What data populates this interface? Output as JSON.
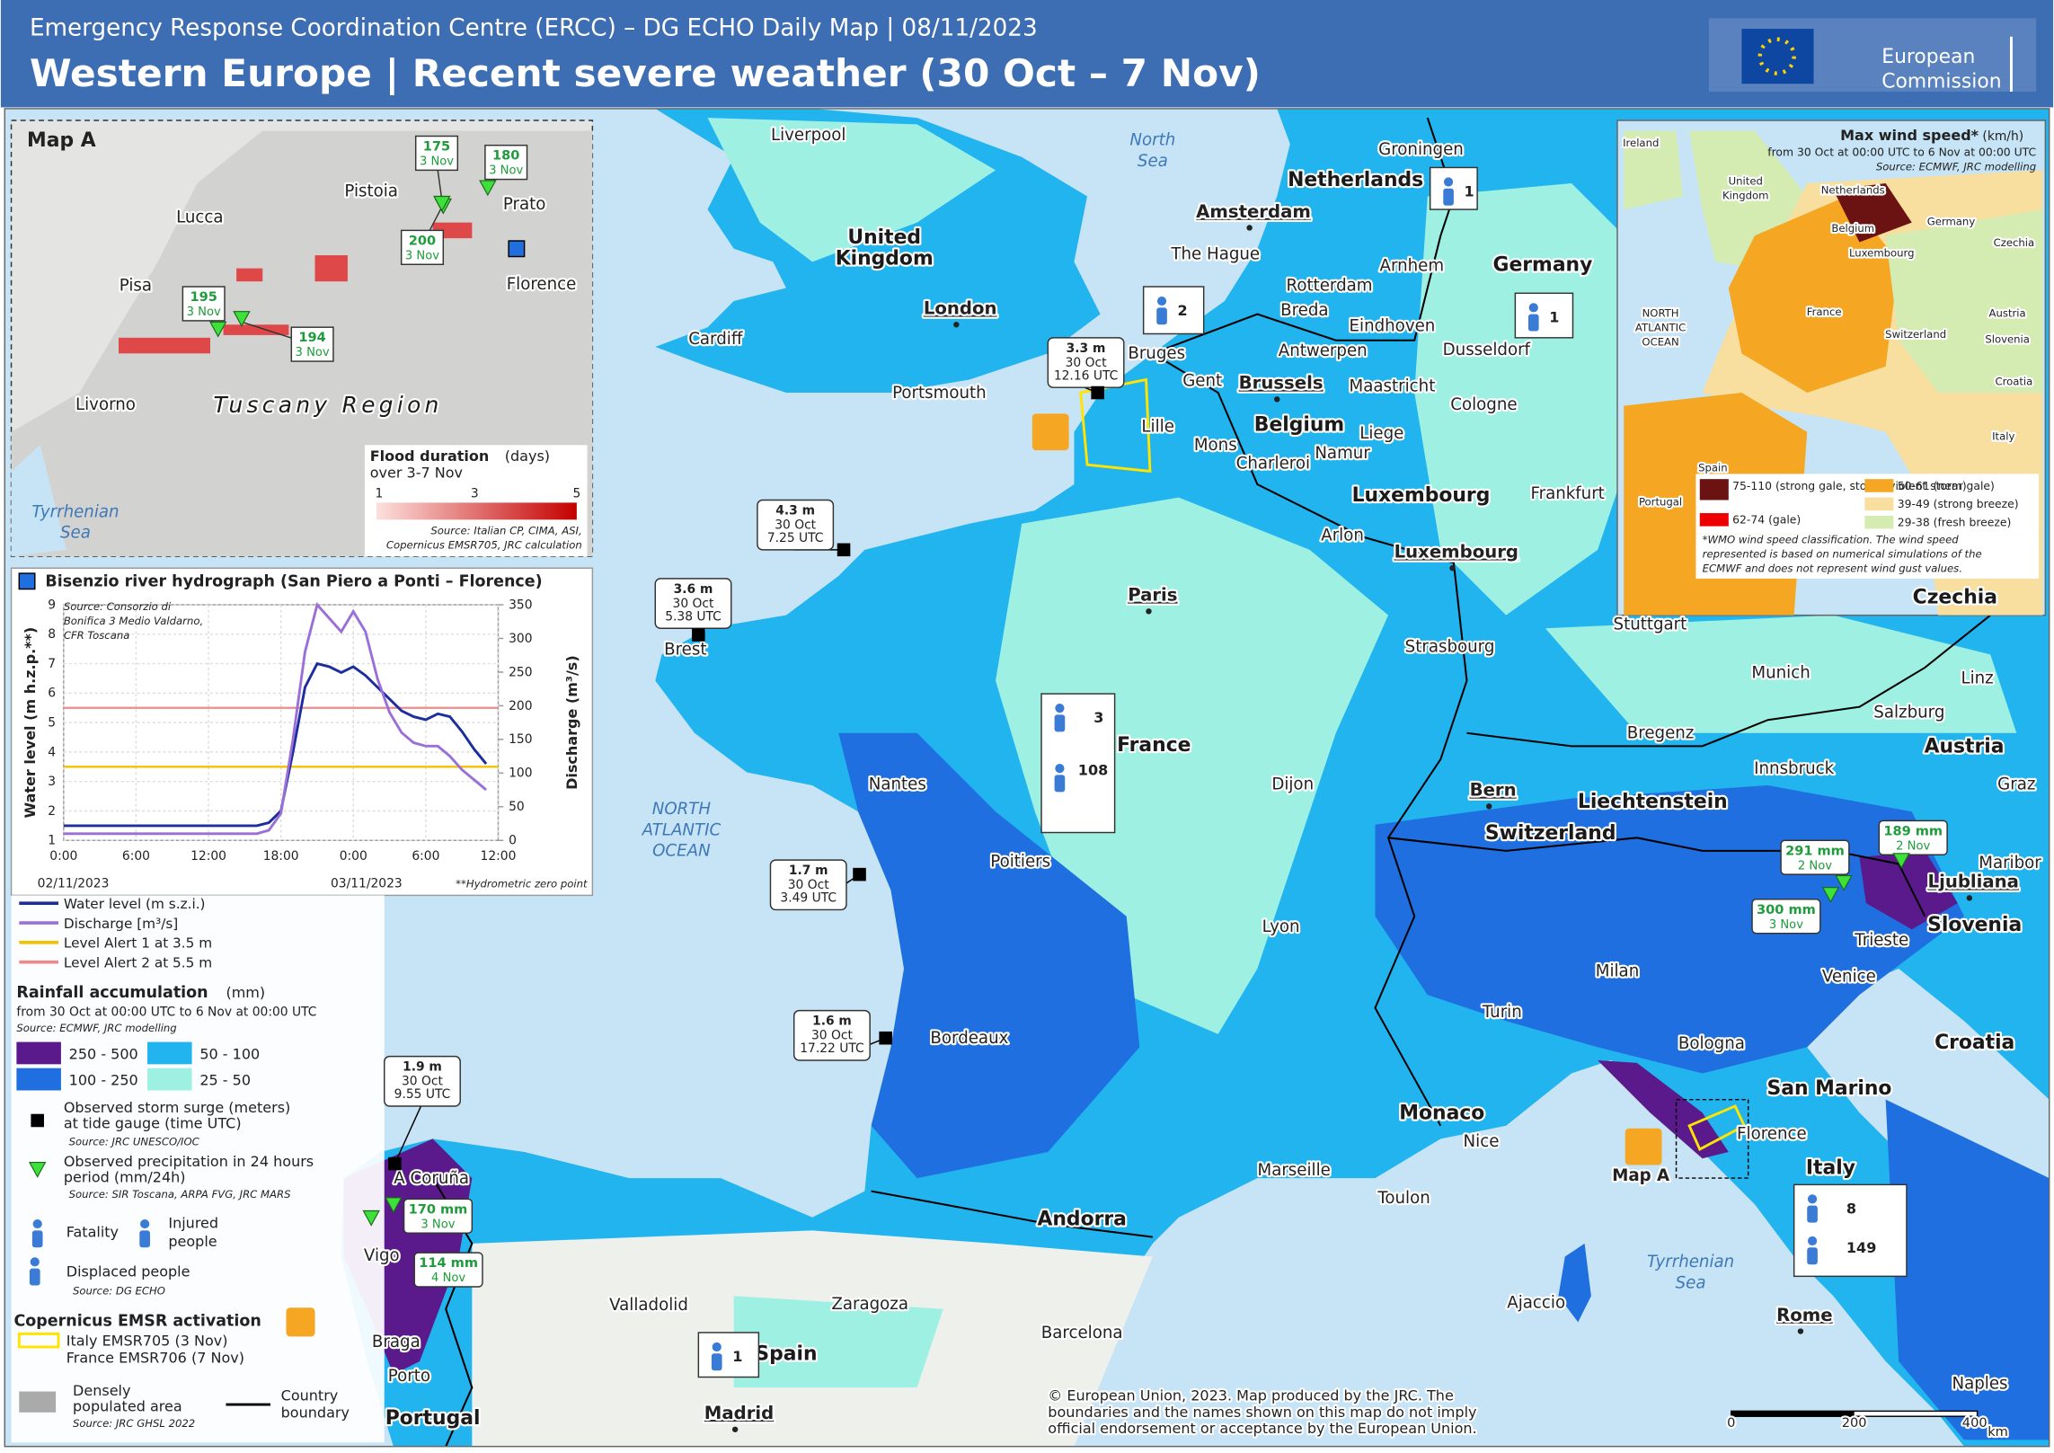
{
  "header": {
    "subtitle": "Emergency Response Coordination Centre (ERCC) – DG ECHO Daily Map | 08/11/2023",
    "title": "Western Europe | Recent severe weather (30 Oct – 7 Nov)",
    "logo": [
      "European",
      "Commission"
    ]
  },
  "map": {
    "places": [
      "Liverpool",
      [
        "North",
        "Sea"
      ],
      "Groningen",
      "Netherlands",
      "Amsterdam",
      [
        "United",
        "Kingdom"
      ],
      "The Hague",
      "Rotterdam",
      "Arnhem",
      "Germany",
      "Breda",
      "Eindhoven",
      "London",
      "Cardiff",
      "Antwerpen",
      "Dusseldorf",
      "Bruges",
      "Gent",
      "Brussels",
      "Maastricht",
      "Portsmouth",
      "Cologne",
      "Lille",
      "Belgium",
      "Liege",
      "Mons",
      "Namur",
      "Charleroi",
      "Luxembourg",
      "Frankfurt",
      "Arlon",
      "Luxembourg",
      "Paris",
      "Czechia",
      "Stuttgart",
      "Strasbourg",
      "Brest",
      "Munich",
      "Linz",
      "Salzburg",
      "France",
      "Bregenz",
      "Austria",
      "Nantes",
      "Dijon",
      "Innsbruck",
      "Graz",
      "Bern",
      "Liechtenstein",
      "Switzerland",
      [
        "NORTH",
        "ATLANTIC",
        "OCEAN"
      ],
      "Poitiers",
      "Maribor",
      "Ljubliana",
      "Lyon",
      "Slovenia",
      "Trieste",
      "Milan",
      "Venice",
      "Turin",
      "Bordeaux",
      "Bologna",
      "Croatia",
      "San Marino",
      "Monaco",
      "Florence",
      "Nice",
      "Italy",
      "Marseille",
      "Map A",
      "A Coruña",
      "Toulon",
      "Andorra",
      "Vigo",
      [
        "Tyrrhenian",
        "Sea"
      ],
      "Ajaccio",
      "Valladolid",
      "Zaragoza",
      "Rome",
      "Barcelona",
      "Braga",
      "Spain",
      "Porto",
      "Naples",
      "Madrid",
      "Portugal"
    ],
    "impact_boxes": [
      {
        "fatalities": "1"
      },
      {
        "fatalities": "2"
      },
      {
        "fatalities": "1"
      },
      {
        "fatalities": "3",
        "injured": "108"
      },
      {
        "fatalities": "8",
        "displaced": "149"
      },
      {
        "fatalities": "1"
      }
    ],
    "storm_surges": [
      {
        "height": "3.3 m",
        "date": "30 Oct",
        "time": "12.16 UTC"
      },
      {
        "height": "4.3 m",
        "date": "30 Oct",
        "time": "7.25 UTC"
      },
      {
        "height": "3.6 m",
        "date": "30 Oct",
        "time": "5.38 UTC"
      },
      {
        "height": "1.7 m",
        "date": "30 Oct",
        "time": "3.49 UTC"
      },
      {
        "height": "1.6 m",
        "date": "30 Oct",
        "time": "17.22 UTC"
      },
      {
        "height": "1.9 m",
        "date": "30 Oct",
        "time": "9.55 UTC"
      }
    ],
    "precipitation": [
      {
        "amount": "291 mm",
        "date": "2 Nov"
      },
      {
        "amount": "189 mm",
        "date": "2 Nov"
      },
      {
        "amount": "300 mm",
        "date": "3 Nov"
      },
      {
        "amount": "170 mm",
        "date": "3 Nov"
      },
      {
        "amount": "114 mm",
        "date": "4 Nov"
      }
    ]
  },
  "map_a": {
    "title": "Map A",
    "places": [
      "Pistoia",
      "Prato",
      "Lucca",
      "Florence",
      "Pisa",
      "Livorno",
      "Tuscany Region",
      [
        "Tyrrhenian",
        "Sea"
      ]
    ],
    "precipitation": [
      {
        "amount": "175",
        "date": "3 Nov"
      },
      {
        "amount": "180",
        "date": "3 Nov"
      },
      {
        "amount": "200",
        "date": "3 Nov"
      },
      {
        "amount": "195",
        "date": "3 Nov"
      },
      {
        "amount": "194",
        "date": "3 Nov"
      }
    ],
    "flood_legend": {
      "title": "Flood duration",
      "unit": "(days)",
      "period": "over 3-7 Nov",
      "ticks": [
        "1",
        "3",
        "5"
      ],
      "source": [
        "Source: Italian CP, CIMA, ASI,",
        "Copernicus EMSR705, JRC calculation"
      ]
    }
  },
  "wind_inset": {
    "title": "Max wind speed*",
    "unit": "(km/h)",
    "period": "from 30 Oct at 00:00 UTC to 6 Nov at 00:00 UTC",
    "source": "Source: ECMWF, JRC modelling",
    "places": [
      "Ireland",
      [
        "United",
        "Kingdom"
      ],
      "Netherlands",
      "Belgium",
      "Luxembourg",
      "Germany",
      "Czechia",
      "France",
      [
        "NORTH",
        "ATLANTIC",
        "OCEAN"
      ],
      "Switzerland",
      "Austria",
      "Slovenia",
      "Croatia",
      "Italy",
      "Spain",
      "Portugal"
    ],
    "classes": [
      {
        "label": "75-110 (strong gale, storm, violent storm)",
        "color": "#6b1212"
      },
      {
        "label": "62-74 (gale)",
        "color": "#ee0000"
      },
      {
        "label": "50-61 (near gale)",
        "color": "#f5a623"
      },
      {
        "label": "39-49 (strong breeze)",
        "color": "#f8dfa0"
      },
      {
        "label": "29-38 (fresh breeze)",
        "color": "#d4ecb2"
      }
    ],
    "note": [
      "*WMO wind speed classification. The wind speed",
      "represented is based on numerical simulations of the",
      "ECMWF and does not represent wind gust values."
    ]
  },
  "chart_data": {
    "type": "line",
    "title": "Bisenzio river hydrograph (San Piero a Ponti – Florence)",
    "source": [
      "Source: Consorzio di",
      "Bonifica 3 Medio Valdarno,",
      "CFR Toscana"
    ],
    "y_label": "Water level (m h.z.p.**)",
    "y2_label": "Discharge (m³/s)",
    "x_dates": [
      "02/11/2023",
      "03/11/2023"
    ],
    "note": "**Hydrometric zero point",
    "x": [
      0,
      4,
      8,
      12,
      16,
      17,
      18,
      19,
      20,
      21,
      22,
      23,
      24,
      25,
      26,
      27,
      28,
      29,
      30,
      31,
      32,
      33,
      34,
      35
    ],
    "xlim": [
      0,
      36
    ],
    "xticks": [
      {
        "value": 0,
        "label": "0:00"
      },
      {
        "value": 6,
        "label": "6:00"
      },
      {
        "value": 12,
        "label": "12:00"
      },
      {
        "value": 18,
        "label": "18:00"
      },
      {
        "value": 24,
        "label": "0:00"
      },
      {
        "value": 30,
        "label": "6:00"
      },
      {
        "value": 36,
        "label": "12:00"
      }
    ],
    "ylim": [
      1,
      9
    ],
    "yticks": [
      1,
      2,
      3,
      4,
      5,
      6,
      7,
      8,
      9
    ],
    "y2lim": [
      0,
      350
    ],
    "y2ticks": [
      0,
      50,
      100,
      150,
      200,
      250,
      300,
      350
    ],
    "grid": true,
    "series": [
      {
        "name": "Water level (m s.z.i.)",
        "color": "#1c2d9e",
        "values": [
          1.5,
          1.5,
          1.5,
          1.5,
          1.5,
          1.6,
          2.0,
          4.0,
          6.2,
          7.0,
          6.9,
          6.7,
          6.9,
          6.6,
          6.2,
          5.8,
          5.4,
          5.2,
          5.1,
          5.3,
          5.2,
          4.7,
          4.1,
          3.6
        ]
      },
      {
        "name": "Discharge [m³/s]",
        "color": "#9b6fd8",
        "axis": "y2",
        "values": [
          10,
          10,
          10,
          10,
          10,
          15,
          40,
          150,
          280,
          350,
          330,
          310,
          340,
          310,
          240,
          190,
          160,
          145,
          140,
          140,
          125,
          105,
          90,
          75
        ]
      }
    ],
    "thresholds": [
      {
        "name": "Level Alert 1 at 3.5 m",
        "value": 3.5,
        "color": "#f2c200"
      },
      {
        "name": "Level Alert 2 at 5.5 m",
        "value": 5.5,
        "color": "#f08a8a"
      }
    ]
  },
  "legend": {
    "rain_title": "Rainfall accumulation",
    "rain_unit": "(mm)",
    "rain_period": "from 30 Oct at 00:00 UTC to 6 Nov at 00:00 UTC",
    "rain_source": "Source: ECMWF, JRC modelling",
    "rain_classes": [
      {
        "label": "250 - 500",
        "color": "#5b1a8c"
      },
      {
        "label": "100 - 250",
        "color": "#1f6fe0"
      },
      {
        "label": "50 - 100",
        "color": "#22b4ee"
      },
      {
        "label": "25 - 50",
        "color": "#9ef0e2"
      }
    ],
    "surge": [
      "Observed storm surge (meters)",
      "at tide gauge (time UTC)"
    ],
    "surge_source": "Source: JRC UNESCO/IOC",
    "precip": [
      "Observed precipitation in 24 hours",
      "period (mm/24h)"
    ],
    "precip_source": "Source: SIR Toscana, ARPA FVG, JRC MARS",
    "fatality": "Fatality",
    "injured": [
      "Injured",
      "people"
    ],
    "displaced": "Displaced people",
    "impact_source": "Source: DG ECHO",
    "emsr_title": "Copernicus EMSR activation",
    "emsr": [
      "Italy EMSR705 (3 Nov)",
      "France EMSR706 (7 Nov)"
    ],
    "populated": [
      "Densely",
      "populated area"
    ],
    "populated_source": "Source: JRC GHSL 2022",
    "boundary": [
      "Country",
      "boundary"
    ]
  },
  "footer": {
    "copyright": [
      "© European Union, 2023. Map produced by the JRC. The",
      "boundaries and the names shown on this map do not imply",
      "official endorsement or acceptance by the European Union."
    ],
    "scale": [
      "0",
      "200",
      "400",
      "km"
    ]
  }
}
